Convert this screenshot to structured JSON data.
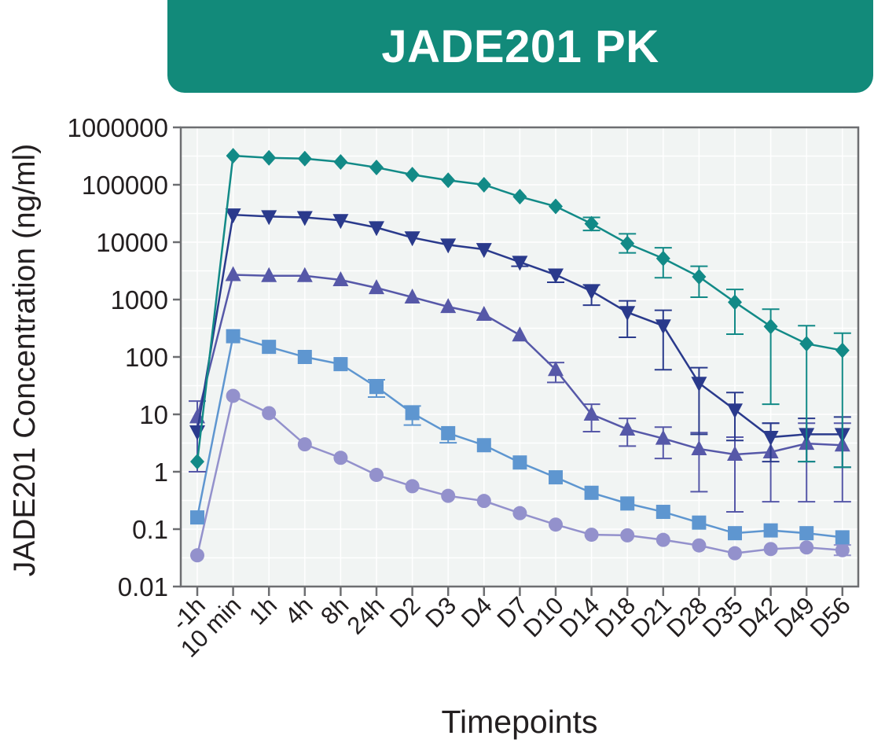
{
  "title_banner": {
    "text": "JADE201 PK",
    "color": "#128a7a"
  },
  "chart_data": {
    "type": "line",
    "xlabel": "Timepoints",
    "ylabel": "JADE201 Concentration (ng/ml)",
    "y_scale": "log",
    "ylim": [
      0.01,
      1000000
    ],
    "y_ticks": [
      "0.01",
      "0.1",
      "1",
      "10",
      "100",
      "1000",
      "10000",
      "100000",
      "1000000"
    ],
    "grid": true,
    "plot_background": "#f1f4f3",
    "categories": [
      "-1h",
      "10 min",
      "1h",
      "4h",
      "8h",
      "24h",
      "D2",
      "D3",
      "D4",
      "D7",
      "D10",
      "D14",
      "D18",
      "D21",
      "D28",
      "D35",
      "D42",
      "D49",
      "D56"
    ],
    "series": [
      {
        "marker": "diamond",
        "color": "#128a87",
        "values": [
          1.5,
          320000,
          295000,
          285000,
          250000,
          200000,
          150000,
          120000,
          100000,
          62000,
          42000,
          21000,
          9500,
          5200,
          2500,
          900,
          340,
          170,
          130
        ],
        "err_low": [
          null,
          null,
          null,
          null,
          null,
          null,
          null,
          null,
          null,
          null,
          null,
          16000,
          6500,
          2400,
          1100,
          250,
          15,
          1.5,
          1.2
        ],
        "err_high": [
          null,
          null,
          null,
          null,
          null,
          null,
          null,
          null,
          null,
          null,
          null,
          27000,
          14000,
          8000,
          3800,
          1500,
          680,
          350,
          260
        ]
      },
      {
        "marker": "triangle-down",
        "color": "#2a3a8c",
        "values": [
          5,
          30000,
          28000,
          27000,
          24000,
          18000,
          12000,
          9000,
          7500,
          4500,
          2700,
          1400,
          600,
          350,
          35,
          12,
          4,
          4.5,
          4.5
        ],
        "err_low": [
          null,
          null,
          null,
          null,
          null,
          null,
          null,
          null,
          null,
          3800,
          2000,
          800,
          220,
          60,
          4.5,
          3.5,
          1.5,
          1.5,
          1.2
        ],
        "err_high": [
          null,
          null,
          null,
          null,
          null,
          null,
          null,
          null,
          null,
          null,
          null,
          1800,
          950,
          650,
          65,
          24,
          7,
          8.5,
          9
        ]
      },
      {
        "marker": "triangle-up",
        "color": "#5658a8",
        "values": [
          9,
          2700,
          2600,
          2600,
          2200,
          1600,
          1100,
          750,
          550,
          240,
          60,
          10,
          5.5,
          3.8,
          2.5,
          2,
          2.2,
          3.1,
          2.9
        ],
        "err_low": [
          1,
          null,
          null,
          null,
          null,
          null,
          null,
          null,
          null,
          null,
          36,
          5,
          2.8,
          1.7,
          0.45,
          0.2,
          0.3,
          0.3,
          0.3
        ],
        "err_high": [
          17,
          null,
          null,
          null,
          null,
          null,
          null,
          null,
          null,
          null,
          80,
          15,
          8.5,
          6,
          4.8,
          4,
          7,
          7,
          7
        ]
      },
      {
        "marker": "square",
        "color": "#5e96d0",
        "values": [
          0.16,
          230,
          150,
          100,
          75,
          30,
          10.5,
          4.7,
          2.9,
          1.45,
          0.8,
          0.43,
          0.28,
          0.2,
          0.13,
          0.085,
          0.095,
          0.085,
          0.072
        ],
        "err_low": [
          null,
          null,
          null,
          null,
          null,
          20,
          6.5,
          3.2,
          null,
          null,
          null,
          null,
          null,
          null,
          null,
          null,
          null,
          null,
          null
        ],
        "err_high": [
          null,
          null,
          null,
          null,
          null,
          40,
          14,
          null,
          null,
          null,
          null,
          null,
          null,
          null,
          null,
          null,
          null,
          null,
          null
        ]
      },
      {
        "marker": "circle",
        "color": "#9391cc",
        "values": [
          0.035,
          21,
          10.5,
          3,
          1.75,
          0.88,
          0.56,
          0.38,
          0.31,
          0.19,
          0.12,
          0.08,
          0.078,
          0.065,
          0.052,
          0.038,
          0.045,
          0.048,
          0.043
        ],
        "err_low": [
          null,
          null,
          null,
          null,
          null,
          null,
          null,
          null,
          null,
          null,
          null,
          null,
          null,
          null,
          null,
          null,
          null,
          null,
          0.035
        ],
        "err_high": [
          null,
          null,
          null,
          null,
          null,
          null,
          null,
          null,
          null,
          null,
          null,
          null,
          null,
          null,
          null,
          null,
          null,
          null,
          0.053
        ]
      }
    ]
  }
}
